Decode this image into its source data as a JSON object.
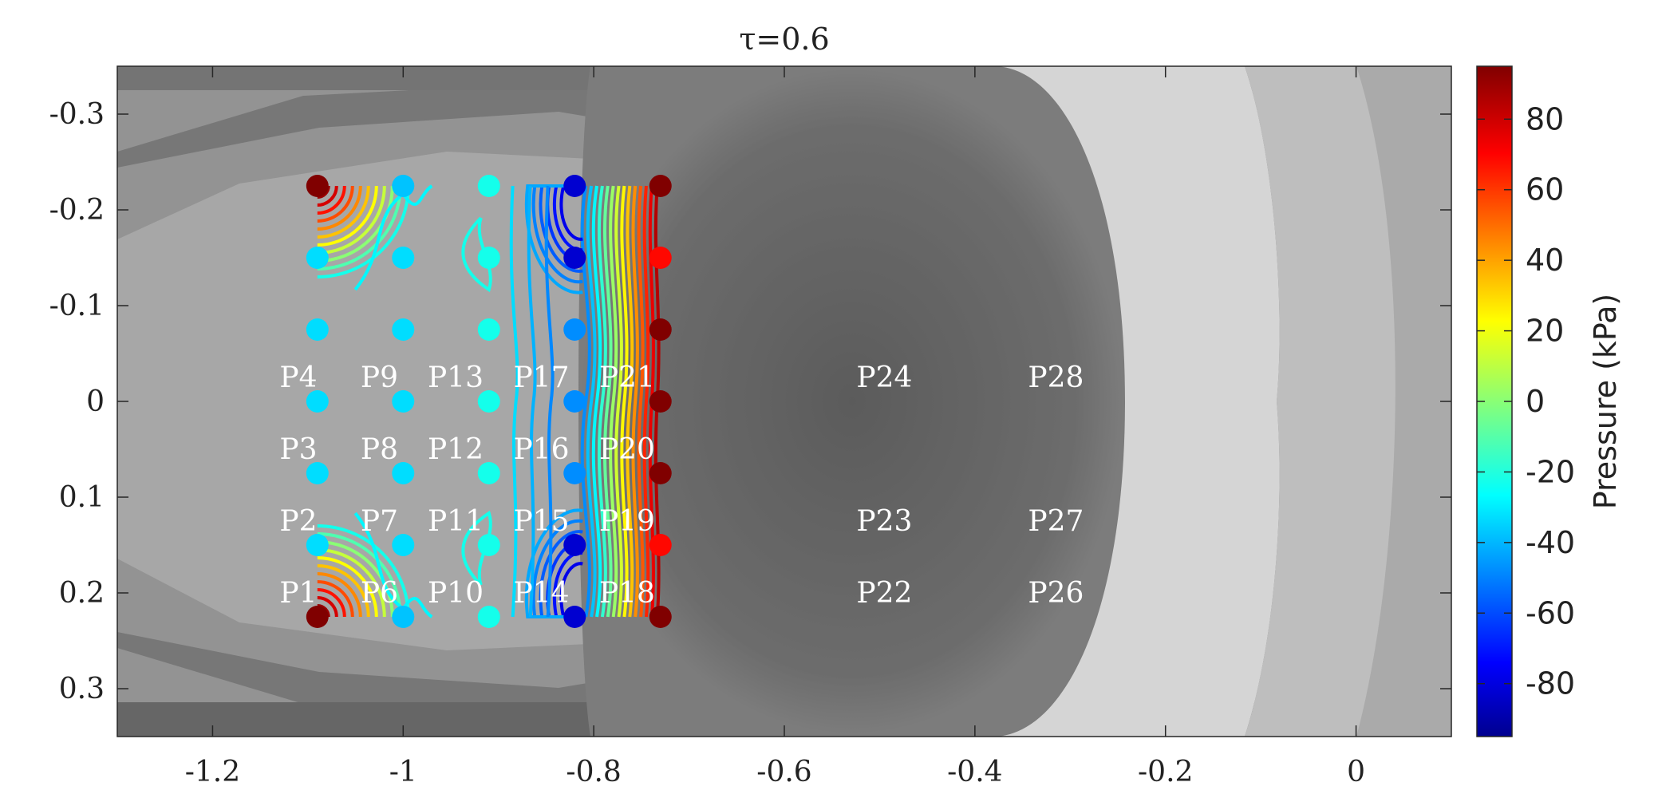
{
  "chart_data": {
    "type": "heatmap",
    "title": "τ=0.6",
    "xlim": [
      -1.3,
      0.1
    ],
    "ylim": [
      -0.35,
      0.35
    ],
    "y_reversed": true,
    "x_ticks": [
      {
        "value": -1.2,
        "label": "-1.2"
      },
      {
        "value": -1.0,
        "label": "-1"
      },
      {
        "value": -0.8,
        "label": "-0.8"
      },
      {
        "value": -0.6,
        "label": "-0.6"
      },
      {
        "value": -0.4,
        "label": "-0.4"
      },
      {
        "value": -0.2,
        "label": "-0.2"
      },
      {
        "value": 0.0,
        "label": "0"
      }
    ],
    "y_ticks": [
      {
        "value": -0.3,
        "label": "-0.3"
      },
      {
        "value": -0.2,
        "label": "-0.2"
      },
      {
        "value": -0.1,
        "label": "-0.1"
      },
      {
        "value": 0.0,
        "label": "0"
      },
      {
        "value": 0.1,
        "label": "0.1"
      },
      {
        "value": 0.2,
        "label": "0.2"
      },
      {
        "value": 0.3,
        "label": "0.3"
      }
    ],
    "colorbar": {
      "label": "Pressure (kPa)",
      "range": [
        -95,
        95
      ],
      "colormap": "jet",
      "ticks": [
        {
          "value": 80,
          "label": "80"
        },
        {
          "value": 60,
          "label": "60"
        },
        {
          "value": 40,
          "label": "40"
        },
        {
          "value": 20,
          "label": "20"
        },
        {
          "value": 0,
          "label": "0"
        },
        {
          "value": -20,
          "label": "-20"
        },
        {
          "value": -40,
          "label": "-40"
        },
        {
          "value": -60,
          "label": "-60"
        },
        {
          "value": -80,
          "label": "-80"
        }
      ]
    },
    "probe_rows_y": [
      -0.225,
      -0.15,
      -0.075,
      0.0,
      0.075,
      0.15,
      0.225
    ],
    "probe_columns": [
      {
        "x": -1.09,
        "pressures": [
          95,
          -30,
          -30,
          -30,
          -30,
          -30,
          95
        ]
      },
      {
        "x": -1.0,
        "pressures": [
          -35,
          -30,
          -30,
          -30,
          -30,
          -30,
          -35
        ]
      },
      {
        "x": -0.91,
        "pressures": [
          -20,
          -20,
          -20,
          -20,
          -20,
          -20,
          -20
        ]
      },
      {
        "x": -0.82,
        "pressures": [
          -80,
          -80,
          -45,
          -45,
          -45,
          -80,
          -80
        ]
      },
      {
        "x": -0.73,
        "pressures": [
          95,
          70,
          95,
          95,
          95,
          70,
          95
        ]
      }
    ],
    "probe_labels": [
      {
        "text": "P1",
        "x": -1.11,
        "y": 0.2
      },
      {
        "text": "P2",
        "x": -1.11,
        "y": 0.125
      },
      {
        "text": "P3",
        "x": -1.11,
        "y": 0.05
      },
      {
        "text": "P4",
        "x": -1.11,
        "y": -0.025
      },
      {
        "text": "P6",
        "x": -1.025,
        "y": 0.2
      },
      {
        "text": "P7",
        "x": -1.025,
        "y": 0.125
      },
      {
        "text": "P8",
        "x": -1.025,
        "y": 0.05
      },
      {
        "text": "P9",
        "x": -1.025,
        "y": -0.025
      },
      {
        "text": "P10",
        "x": -0.945,
        "y": 0.2
      },
      {
        "text": "P11",
        "x": -0.945,
        "y": 0.125
      },
      {
        "text": "P12",
        "x": -0.945,
        "y": 0.05
      },
      {
        "text": "P13",
        "x": -0.945,
        "y": -0.025
      },
      {
        "text": "P14",
        "x": -0.855,
        "y": 0.2
      },
      {
        "text": "P15",
        "x": -0.855,
        "y": 0.125
      },
      {
        "text": "P16",
        "x": -0.855,
        "y": 0.05
      },
      {
        "text": "P17",
        "x": -0.855,
        "y": -0.025
      },
      {
        "text": "P18",
        "x": -0.765,
        "y": 0.2
      },
      {
        "text": "P19",
        "x": -0.765,
        "y": 0.125
      },
      {
        "text": "P20",
        "x": -0.765,
        "y": 0.05
      },
      {
        "text": "P21",
        "x": -0.765,
        "y": -0.025
      },
      {
        "text": "P22",
        "x": -0.495,
        "y": 0.2
      },
      {
        "text": "P23",
        "x": -0.495,
        "y": 0.125
      },
      {
        "text": "P24",
        "x": -0.495,
        "y": -0.025
      },
      {
        "text": "P26",
        "x": -0.315,
        "y": 0.2
      },
      {
        "text": "P27",
        "x": -0.315,
        "y": 0.125
      },
      {
        "text": "P28",
        "x": -0.315,
        "y": -0.025
      }
    ]
  }
}
